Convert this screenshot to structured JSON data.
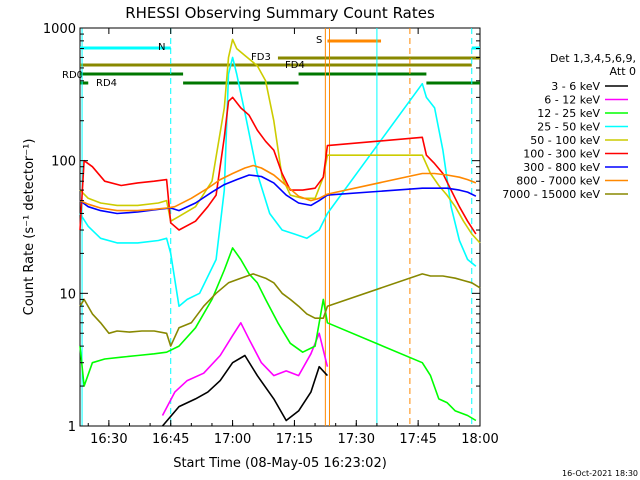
{
  "chart_data": {
    "type": "line",
    "title": "RHESSI Observing Summary Count Rates",
    "xlabel": "Start Time (08-May-05 16:23:02)",
    "ylabel": "Count Rate (s⁻¹ detector⁻¹)",
    "footer": "16-Oct-2021 18:30",
    "x_unit": "minutes since 16:23:02",
    "xlim": [
      0,
      97
    ],
    "ylim": [
      1,
      1000
    ],
    "yscale": "log",
    "x_ticks": [
      {
        "t": 7,
        "label": "16:30"
      },
      {
        "t": 22,
        "label": "16:45"
      },
      {
        "t": 37,
        "label": "17:00"
      },
      {
        "t": 52,
        "label": "17:15"
      },
      {
        "t": 67,
        "label": "17:30"
      },
      {
        "t": 82,
        "label": "17:45"
      },
      {
        "t": 97,
        "label": "18:00"
      }
    ],
    "y_ticks": [
      {
        "v": 1,
        "label": "1"
      },
      {
        "v": 10,
        "label": "10"
      },
      {
        "v": 100,
        "label": "100"
      },
      {
        "v": 1000,
        "label": "1000"
      }
    ],
    "legend": {
      "header": [
        "Det 1,3,4,5,6,9,",
        "Att 0"
      ],
      "position": "right"
    },
    "series": [
      {
        "name": "3 - 6 keV",
        "color": "#000000",
        "points": [
          [
            20,
            1
          ],
          [
            24,
            1.4
          ],
          [
            28,
            1.6
          ],
          [
            31,
            1.8
          ],
          [
            34,
            2.2
          ],
          [
            37,
            3
          ],
          [
            40,
            3.4
          ],
          [
            43,
            2.4
          ],
          [
            47,
            1.6
          ],
          [
            50,
            1.1
          ],
          [
            53,
            1.3
          ],
          [
            56,
            1.8
          ],
          [
            58,
            2.8
          ],
          [
            60,
            2.4
          ]
        ]
      },
      {
        "name": "6 - 12 keV",
        "color": "#ff00ff",
        "points": [
          [
            20,
            1.2
          ],
          [
            23,
            1.8
          ],
          [
            26,
            2.2
          ],
          [
            30,
            2.5
          ],
          [
            34,
            3.4
          ],
          [
            37,
            4.8
          ],
          [
            39,
            6
          ],
          [
            41,
            4.5
          ],
          [
            44,
            3
          ],
          [
            47,
            2.4
          ],
          [
            50,
            2.6
          ],
          [
            53,
            2.4
          ],
          [
            56,
            3.5
          ],
          [
            58,
            5
          ],
          [
            60,
            2.8
          ]
        ]
      },
      {
        "name": "12 - 25 keV",
        "color": "#00ff00",
        "points": [
          [
            0,
            4
          ],
          [
            1,
            2
          ],
          [
            3,
            3
          ],
          [
            6,
            3.2
          ],
          [
            10,
            3.3
          ],
          [
            14,
            3.4
          ],
          [
            18,
            3.5
          ],
          [
            21,
            3.6
          ],
          [
            24,
            4
          ],
          [
            28,
            5.5
          ],
          [
            32,
            9
          ],
          [
            35,
            15
          ],
          [
            37,
            22
          ],
          [
            39,
            18
          ],
          [
            41,
            14
          ],
          [
            43,
            12
          ],
          [
            45,
            9
          ],
          [
            48,
            6
          ],
          [
            51,
            4.2
          ],
          [
            54,
            3.6
          ],
          [
            57,
            4
          ],
          [
            59,
            9
          ],
          [
            60,
            6
          ],
          [
            83,
            3
          ],
          [
            85,
            2.4
          ],
          [
            87,
            1.6
          ],
          [
            89,
            1.5
          ],
          [
            91,
            1.3
          ],
          [
            94,
            1.2
          ],
          [
            96,
            1.1
          ]
        ]
      },
      {
        "name": "25 - 50 keV",
        "color": "#00ffff",
        "points": [
          [
            0,
            40
          ],
          [
            2,
            32
          ],
          [
            5,
            26
          ],
          [
            9,
            24
          ],
          [
            14,
            24
          ],
          [
            19,
            25
          ],
          [
            21,
            26
          ],
          [
            22,
            20
          ],
          [
            24,
            8
          ],
          [
            26,
            9
          ],
          [
            29,
            10
          ],
          [
            33,
            18
          ],
          [
            35,
            60
          ],
          [
            36,
            450
          ],
          [
            37,
            600
          ],
          [
            38,
            450
          ],
          [
            40,
            230
          ],
          [
            43,
            80
          ],
          [
            46,
            40
          ],
          [
            49,
            30
          ],
          [
            52,
            28
          ],
          [
            55,
            26
          ],
          [
            58,
            30
          ],
          [
            60,
            40
          ],
          [
            83,
            380
          ],
          [
            84,
            300
          ],
          [
            86,
            250
          ],
          [
            88,
            120
          ],
          [
            90,
            45
          ],
          [
            92,
            25
          ],
          [
            94,
            18
          ],
          [
            96,
            16
          ]
        ]
      },
      {
        "name": "50 - 100 keV",
        "color": "#cccc00",
        "points": [
          [
            0,
            60
          ],
          [
            2,
            52
          ],
          [
            5,
            48
          ],
          [
            9,
            46
          ],
          [
            14,
            46
          ],
          [
            19,
            48
          ],
          [
            21,
            50
          ],
          [
            22,
            35
          ],
          [
            24,
            38
          ],
          [
            28,
            45
          ],
          [
            32,
            70
          ],
          [
            35,
            250
          ],
          [
            36,
            600
          ],
          [
            37,
            820
          ],
          [
            38,
            700
          ],
          [
            40,
            620
          ],
          [
            43,
            520
          ],
          [
            45,
            400
          ],
          [
            47,
            200
          ],
          [
            49,
            75
          ],
          [
            51,
            55
          ],
          [
            54,
            52
          ],
          [
            57,
            52
          ],
          [
            59,
            75
          ],
          [
            60,
            110
          ],
          [
            83,
            110
          ],
          [
            85,
            80
          ],
          [
            87,
            65
          ],
          [
            89,
            55
          ],
          [
            91,
            45
          ],
          [
            93,
            35
          ],
          [
            95,
            28
          ],
          [
            97,
            24
          ]
        ]
      },
      {
        "name": "100 - 300 keV",
        "color": "#ff0000",
        "points": [
          [
            0,
            30
          ],
          [
            1,
            100
          ],
          [
            3,
            90
          ],
          [
            6,
            70
          ],
          [
            10,
            65
          ],
          [
            14,
            68
          ],
          [
            18,
            70
          ],
          [
            21,
            72
          ],
          [
            22,
            34
          ],
          [
            24,
            30
          ],
          [
            28,
            35
          ],
          [
            31,
            45
          ],
          [
            33,
            55
          ],
          [
            35,
            150
          ],
          [
            36,
            280
          ],
          [
            37,
            300
          ],
          [
            39,
            250
          ],
          [
            41,
            220
          ],
          [
            43,
            170
          ],
          [
            45,
            140
          ],
          [
            47,
            120
          ],
          [
            49,
            80
          ],
          [
            51,
            60
          ],
          [
            54,
            60
          ],
          [
            57,
            62
          ],
          [
            59,
            75
          ],
          [
            60,
            130
          ],
          [
            83,
            150
          ],
          [
            84,
            110
          ],
          [
            86,
            95
          ],
          [
            88,
            80
          ],
          [
            90,
            60
          ],
          [
            92,
            45
          ],
          [
            94,
            35
          ],
          [
            96,
            28
          ]
        ]
      },
      {
        "name": "300 - 800 keV",
        "color": "#0000ff",
        "points": [
          [
            0,
            50
          ],
          [
            2,
            45
          ],
          [
            5,
            42
          ],
          [
            9,
            40
          ],
          [
            14,
            41
          ],
          [
            19,
            43
          ],
          [
            22,
            44
          ],
          [
            24,
            42
          ],
          [
            28,
            48
          ],
          [
            32,
            58
          ],
          [
            35,
            66
          ],
          [
            38,
            72
          ],
          [
            41,
            78
          ],
          [
            44,
            76
          ],
          [
            47,
            68
          ],
          [
            50,
            55
          ],
          [
            53,
            48
          ],
          [
            56,
            46
          ],
          [
            58,
            50
          ],
          [
            60,
            55
          ],
          [
            83,
            62
          ],
          [
            86,
            62
          ],
          [
            89,
            62
          ],
          [
            92,
            60
          ],
          [
            94,
            58
          ],
          [
            96,
            54
          ]
        ]
      },
      {
        "name": "800 - 7000 keV",
        "color": "#ff8800",
        "points": [
          [
            0,
            50
          ],
          [
            2,
            47
          ],
          [
            5,
            44
          ],
          [
            9,
            42
          ],
          [
            14,
            42
          ],
          [
            18,
            43
          ],
          [
            21,
            44
          ],
          [
            23,
            45
          ],
          [
            27,
            52
          ],
          [
            31,
            62
          ],
          [
            34,
            72
          ],
          [
            37,
            80
          ],
          [
            40,
            88
          ],
          [
            42,
            92
          ],
          [
            44,
            88
          ],
          [
            47,
            78
          ],
          [
            50,
            65
          ],
          [
            53,
            54
          ],
          [
            56,
            50
          ],
          [
            58,
            52
          ],
          [
            60,
            56
          ],
          [
            83,
            80
          ],
          [
            86,
            80
          ],
          [
            89,
            78
          ],
          [
            92,
            75
          ],
          [
            94,
            72
          ],
          [
            96,
            68
          ]
        ]
      },
      {
        "name": "7000 - 15000 keV",
        "color": "#888800",
        "points": [
          [
            0,
            8
          ],
          [
            1,
            9
          ],
          [
            3,
            7
          ],
          [
            5,
            6
          ],
          [
            7,
            5
          ],
          [
            9,
            5.2
          ],
          [
            12,
            5.1
          ],
          [
            15,
            5.2
          ],
          [
            18,
            5.2
          ],
          [
            21,
            5
          ],
          [
            22,
            4
          ],
          [
            24,
            5.5
          ],
          [
            27,
            6
          ],
          [
            30,
            8
          ],
          [
            33,
            10
          ],
          [
            36,
            12
          ],
          [
            39,
            13
          ],
          [
            42,
            14
          ],
          [
            45,
            13
          ],
          [
            47,
            12
          ],
          [
            49,
            10
          ],
          [
            51,
            9
          ],
          [
            53,
            8
          ],
          [
            55,
            7
          ],
          [
            57,
            6.5
          ],
          [
            59,
            6.5
          ],
          [
            60,
            8
          ],
          [
            83,
            14
          ],
          [
            85,
            13.5
          ],
          [
            88,
            13.5
          ],
          [
            91,
            13
          ],
          [
            93,
            12.5
          ],
          [
            95,
            12
          ],
          [
            97,
            11
          ]
        ]
      }
    ],
    "spans": [
      {
        "label": "N",
        "color": "#00ffff",
        "segments": [
          [
            0,
            22
          ],
          [
            95,
            100
          ]
        ]
      },
      {
        "label": "S",
        "color": "#ff8800",
        "segments": [
          [
            60,
            73
          ]
        ]
      },
      {
        "label": "FD3",
        "color": "#888800",
        "segments": [
          [
            0,
            95
          ]
        ]
      },
      {
        "label": "FD4",
        "color": "#888800",
        "segments": [
          [
            48,
            97
          ]
        ]
      },
      {
        "label": "RD0",
        "color": "#007700",
        "segments": [
          [
            0,
            25
          ],
          [
            53,
            84
          ]
        ]
      },
      {
        "label": "RD4",
        "color": "#007700",
        "segments": [
          [
            0,
            2
          ],
          [
            25,
            53
          ],
          [
            84,
            97
          ]
        ]
      }
    ],
    "verticals": [
      {
        "t": 0.5,
        "color": "#00ffff",
        "dash": false
      },
      {
        "t": 22,
        "color": "#00ffff",
        "dash": true
      },
      {
        "t": 59.5,
        "color": "#ff8800",
        "dash": false
      },
      {
        "t": 60.5,
        "color": "#ff8800",
        "dash": false
      },
      {
        "t": 72,
        "color": "#00ffff",
        "dash": false
      },
      {
        "t": 80,
        "color": "#ff8800",
        "dash": true
      },
      {
        "t": 95,
        "color": "#00ffff",
        "dash": true
      }
    ]
  }
}
